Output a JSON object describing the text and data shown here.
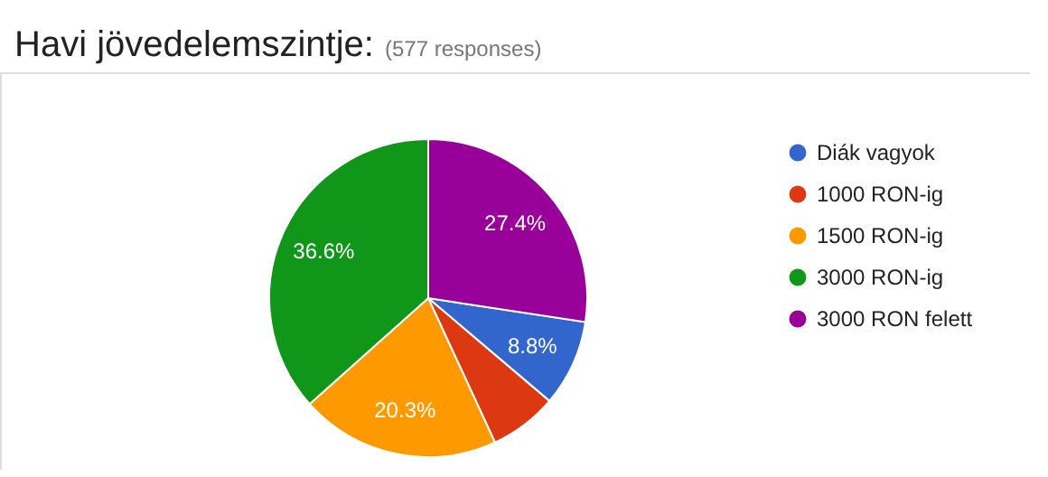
{
  "chart_data": {
    "type": "pie",
    "title": "Havi jövedelemszintje:",
    "subtitle": "(577 responses)",
    "categories": [
      "Diák vagyok",
      "1000 RON-ig",
      "1500 RON-ig",
      "3000 RON-ig",
      "3000 RON felett"
    ],
    "values": [
      8.8,
      6.9,
      20.3,
      36.6,
      27.4
    ],
    "value_labels": [
      "8.8%",
      null,
      "20.3%",
      "36.6%",
      "27.4%"
    ],
    "colors": [
      "#3366cc",
      "#dc3912",
      "#ff9900",
      "#109618",
      "#990099"
    ],
    "legend": "right"
  }
}
